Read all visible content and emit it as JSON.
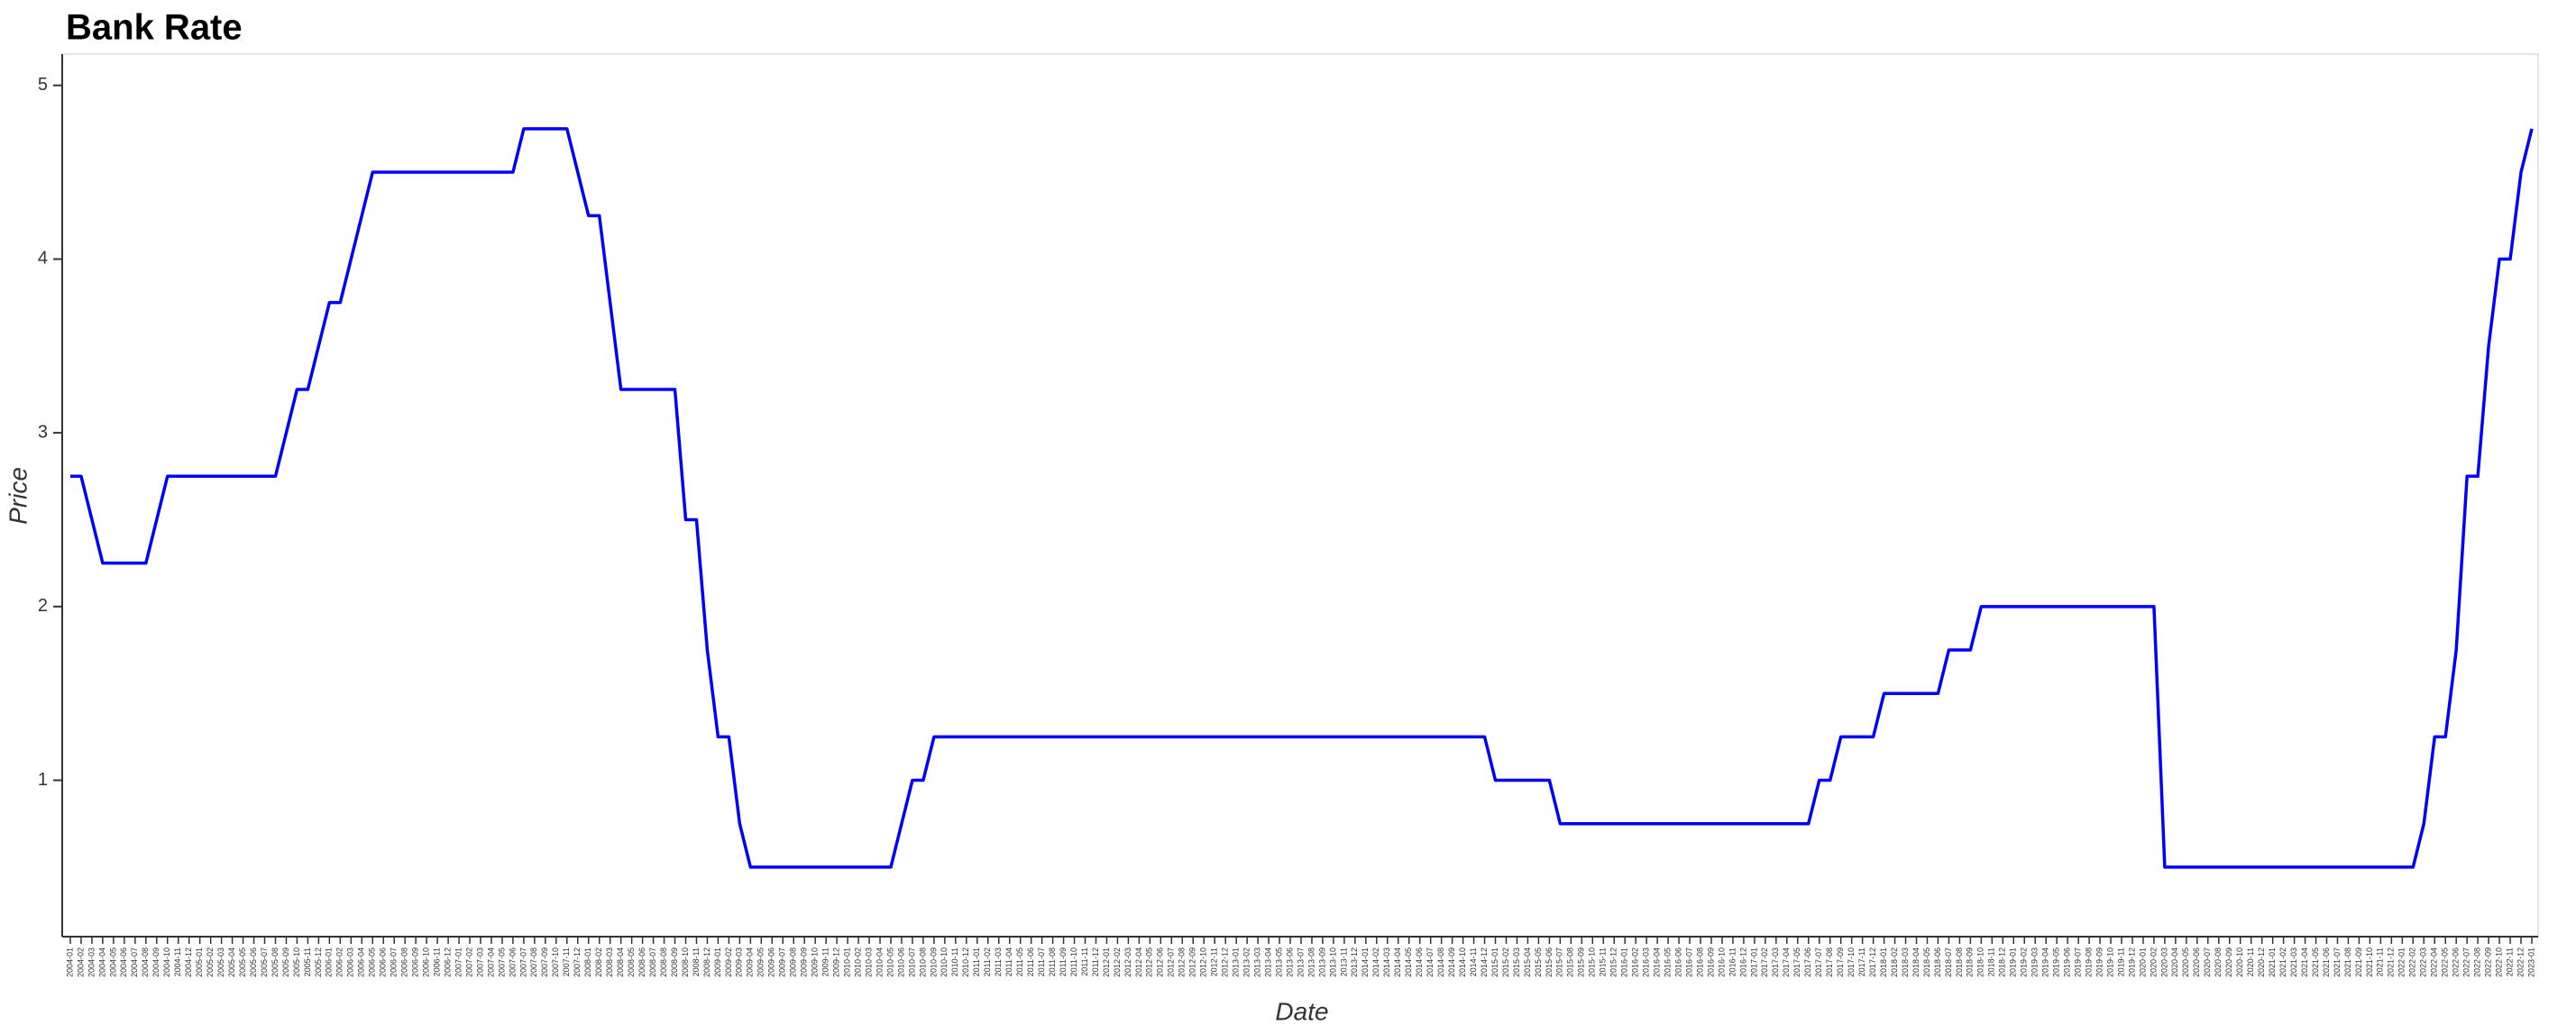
{
  "chart_data": {
    "type": "line",
    "title": "Bank Rate",
    "xlabel": "Date",
    "ylabel": "Price",
    "categories": [
      "2004-01",
      "2004-02",
      "2004-03",
      "2004-04",
      "2004-05",
      "2004-06",
      "2004-07",
      "2004-08",
      "2004-09",
      "2004-10",
      "2004-11",
      "2004-12",
      "2005-01",
      "2005-02",
      "2005-03",
      "2005-04",
      "2005-05",
      "2005-06",
      "2005-07",
      "2005-08",
      "2005-09",
      "2005-10",
      "2005-11",
      "2005-12",
      "2006-01",
      "2006-02",
      "2006-03",
      "2006-04",
      "2006-05",
      "2006-06",
      "2006-07",
      "2006-08",
      "2006-09",
      "2006-10",
      "2006-11",
      "2006-12",
      "2007-01",
      "2007-02",
      "2007-03",
      "2007-04",
      "2007-05",
      "2007-06",
      "2007-07",
      "2007-08",
      "2007-09",
      "2007-10",
      "2007-11",
      "2007-12",
      "2008-01",
      "2008-02",
      "2008-03",
      "2008-04",
      "2008-05",
      "2008-06",
      "2008-07",
      "2008-08",
      "2008-09",
      "2008-10",
      "2008-11",
      "2008-12",
      "2009-01",
      "2009-02",
      "2009-03",
      "2009-04",
      "2009-05",
      "2009-06",
      "2009-07",
      "2009-08",
      "2009-09",
      "2009-10",
      "2009-11",
      "2009-12",
      "2010-01",
      "2010-02",
      "2010-03",
      "2010-04",
      "2010-05",
      "2010-06",
      "2010-07",
      "2010-08",
      "2010-09",
      "2010-10",
      "2010-11",
      "2010-12",
      "2011-01",
      "2011-02",
      "2011-03",
      "2011-04",
      "2011-05",
      "2011-06",
      "2011-07",
      "2011-08",
      "2011-09",
      "2011-10",
      "2011-11",
      "2011-12",
      "2012-01",
      "2012-02",
      "2012-03",
      "2012-04",
      "2012-05",
      "2012-06",
      "2012-07",
      "2012-08",
      "2012-09",
      "2012-10",
      "2012-11",
      "2012-12",
      "2013-01",
      "2013-02",
      "2013-03",
      "2013-04",
      "2013-05",
      "2013-06",
      "2013-07",
      "2013-08",
      "2013-09",
      "2013-10",
      "2013-11",
      "2013-12",
      "2014-01",
      "2014-02",
      "2014-03",
      "2014-04",
      "2014-05",
      "2014-06",
      "2014-07",
      "2014-08",
      "2014-09",
      "2014-10",
      "2014-11",
      "2014-12",
      "2015-01",
      "2015-02",
      "2015-03",
      "2015-04",
      "2015-05",
      "2015-06",
      "2015-07",
      "2015-08",
      "2015-09",
      "2015-10",
      "2015-11",
      "2015-12",
      "2016-01",
      "2016-02",
      "2016-03",
      "2016-04",
      "2016-05",
      "2016-06",
      "2016-07",
      "2016-08",
      "2016-09",
      "2016-10",
      "2016-11",
      "2016-12",
      "2017-01",
      "2017-02",
      "2017-03",
      "2017-04",
      "2017-05",
      "2017-06",
      "2017-07",
      "2017-08",
      "2017-09",
      "2017-10",
      "2017-11",
      "2017-12",
      "2018-01",
      "2018-02",
      "2018-03",
      "2018-04",
      "2018-05",
      "2018-06",
      "2018-07",
      "2018-08",
      "2018-09",
      "2018-10",
      "2018-11",
      "2018-12",
      "2019-01",
      "2019-02",
      "2019-03",
      "2019-04",
      "2019-05",
      "2019-06",
      "2019-07",
      "2019-08",
      "2019-09",
      "2019-10",
      "2019-11",
      "2019-12",
      "2020-01",
      "2020-02",
      "2020-03",
      "2020-04",
      "2020-05",
      "2020-06",
      "2020-07",
      "2020-08",
      "2020-09",
      "2020-10",
      "2020-11",
      "2020-12",
      "2021-01",
      "2021-02",
      "2021-03",
      "2021-04",
      "2021-05",
      "2021-06",
      "2021-07",
      "2021-08",
      "2021-09",
      "2021-10",
      "2021-11",
      "2021-12",
      "2022-01",
      "2022-02",
      "2022-03",
      "2022-04",
      "2022-05",
      "2022-06",
      "2022-07",
      "2022-08",
      "2022-09",
      "2022-10",
      "2022-11",
      "2022-12",
      "2023-01"
    ],
    "values": [
      2.75,
      2.75,
      2.5,
      2.25,
      2.25,
      2.25,
      2.25,
      2.25,
      2.5,
      2.75,
      2.75,
      2.75,
      2.75,
      2.75,
      2.75,
      2.75,
      2.75,
      2.75,
      2.75,
      2.75,
      3.0,
      3.25,
      3.25,
      3.5,
      3.75,
      3.75,
      4.0,
      4.25,
      4.5,
      4.5,
      4.5,
      4.5,
      4.5,
      4.5,
      4.5,
      4.5,
      4.5,
      4.5,
      4.5,
      4.5,
      4.5,
      4.5,
      4.75,
      4.75,
      4.75,
      4.75,
      4.75,
      4.5,
      4.25,
      4.25,
      3.75,
      3.25,
      3.25,
      3.25,
      3.25,
      3.25,
      3.25,
      2.5,
      2.5,
      1.75,
      1.25,
      1.25,
      0.75,
      0.5,
      0.5,
      0.5,
      0.5,
      0.5,
      0.5,
      0.5,
      0.5,
      0.5,
      0.5,
      0.5,
      0.5,
      0.5,
      0.5,
      0.75,
      1.0,
      1.0,
      1.25,
      1.25,
      1.25,
      1.25,
      1.25,
      1.25,
      1.25,
      1.25,
      1.25,
      1.25,
      1.25,
      1.25,
      1.25,
      1.25,
      1.25,
      1.25,
      1.25,
      1.25,
      1.25,
      1.25,
      1.25,
      1.25,
      1.25,
      1.25,
      1.25,
      1.25,
      1.25,
      1.25,
      1.25,
      1.25,
      1.25,
      1.25,
      1.25,
      1.25,
      1.25,
      1.25,
      1.25,
      1.25,
      1.25,
      1.25,
      1.25,
      1.25,
      1.25,
      1.25,
      1.25,
      1.25,
      1.25,
      1.25,
      1.25,
      1.25,
      1.25,
      1.25,
      1.0,
      1.0,
      1.0,
      1.0,
      1.0,
      1.0,
      0.75,
      0.75,
      0.75,
      0.75,
      0.75,
      0.75,
      0.75,
      0.75,
      0.75,
      0.75,
      0.75,
      0.75,
      0.75,
      0.75,
      0.75,
      0.75,
      0.75,
      0.75,
      0.75,
      0.75,
      0.75,
      0.75,
      0.75,
      0.75,
      1.0,
      1.0,
      1.25,
      1.25,
      1.25,
      1.25,
      1.5,
      1.5,
      1.5,
      1.5,
      1.5,
      1.5,
      1.75,
      1.75,
      1.75,
      2.0,
      2.0,
      2.0,
      2.0,
      2.0,
      2.0,
      2.0,
      2.0,
      2.0,
      2.0,
      2.0,
      2.0,
      2.0,
      2.0,
      2.0,
      2.0,
      2.0,
      0.5,
      0.5,
      0.5,
      0.5,
      0.5,
      0.5,
      0.5,
      0.5,
      0.5,
      0.5,
      0.5,
      0.5,
      0.5,
      0.5,
      0.5,
      0.5,
      0.5,
      0.5,
      0.5,
      0.5,
      0.5,
      0.5,
      0.5,
      0.5,
      0.75,
      1.25,
      1.25,
      1.75,
      2.75,
      2.75,
      3.5,
      4.0,
      4.0,
      4.5,
      4.75
    ],
    "color": "#0000ff",
    "ylim": [
      0.1,
      5.18
    ],
    "yticks": [
      1,
      2,
      3,
      4,
      5
    ]
  }
}
